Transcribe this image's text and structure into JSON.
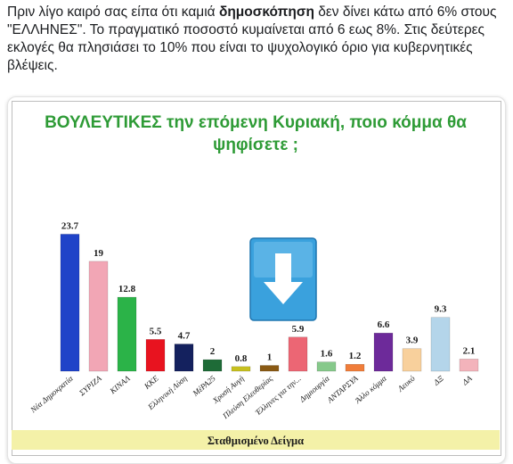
{
  "post": {
    "text_before": "Πριν λίγο καιρό σας είπα ότι καμιά ",
    "text_bold": "δημοσκόπηση",
    "text_after": " δεν δίνει κάτω από 6% στους \"ΕΛΛΗΝΕΣ\". Το πραγματικό ποσοστό κυμαίνεται από 6 εως 8%. Στις δεύτερες εκλογές θα πλησιάσει το 10% που είναι το ψυχολογικό όριο για κυβερνητικές βλέψεις."
  },
  "chart_data": {
    "type": "bar",
    "title_line1": "ΒΟΥΛΕΥΤΙΚΕΣ την επόμενη Κυριακή, ποιο κόμμα θα",
    "title_line2": "ψηφίσετε ;",
    "footer": "Σταθμισμένο Δείγμα",
    "categories": [
      "Νέα Δημοκρατία",
      "ΣΥΡΙΖΑ",
      "ΚΙΝΑΛ",
      "ΚΚΕ",
      "Ελληνική Λύση",
      "ΜέΡΑ25",
      "Χρυσή Αυγή",
      "Πλεύση Ελευθερίας",
      "Έλληνες για την...",
      "Δημιουργία",
      "ΑΝΤΑΡΣΥΑ",
      "Άλλο κόμμα",
      "Λευκό",
      "ΔΞ",
      "ΔΑ"
    ],
    "values": [
      23.7,
      19,
      12.8,
      5.5,
      4.7,
      2,
      0.8,
      1,
      5.9,
      1.6,
      1.2,
      6.6,
      3.9,
      9.3,
      2.1
    ],
    "value_labels": [
      "23.7",
      "19",
      "12.8",
      "5.5",
      "4.7",
      "2",
      "0.8",
      "1",
      "5.9",
      "1.6",
      "1.2",
      "6.6",
      "3.9",
      "9.3",
      "2.1"
    ],
    "colors": [
      "#1f43c8",
      "#f2a6b5",
      "#2bb348",
      "#e8131f",
      "#14215e",
      "#1e6b37",
      "#c7c01f",
      "#8a5a14",
      "#ec6674",
      "#86c98b",
      "#f07d3a",
      "#6d2a9a",
      "#f8d09c",
      "#b4d5ea",
      "#f3b3bb"
    ],
    "ylim": [
      0,
      25
    ],
    "grid": false,
    "legend": "none"
  },
  "overlay": {
    "icon": "down-arrow-icon",
    "color": "#3aa1dd"
  }
}
